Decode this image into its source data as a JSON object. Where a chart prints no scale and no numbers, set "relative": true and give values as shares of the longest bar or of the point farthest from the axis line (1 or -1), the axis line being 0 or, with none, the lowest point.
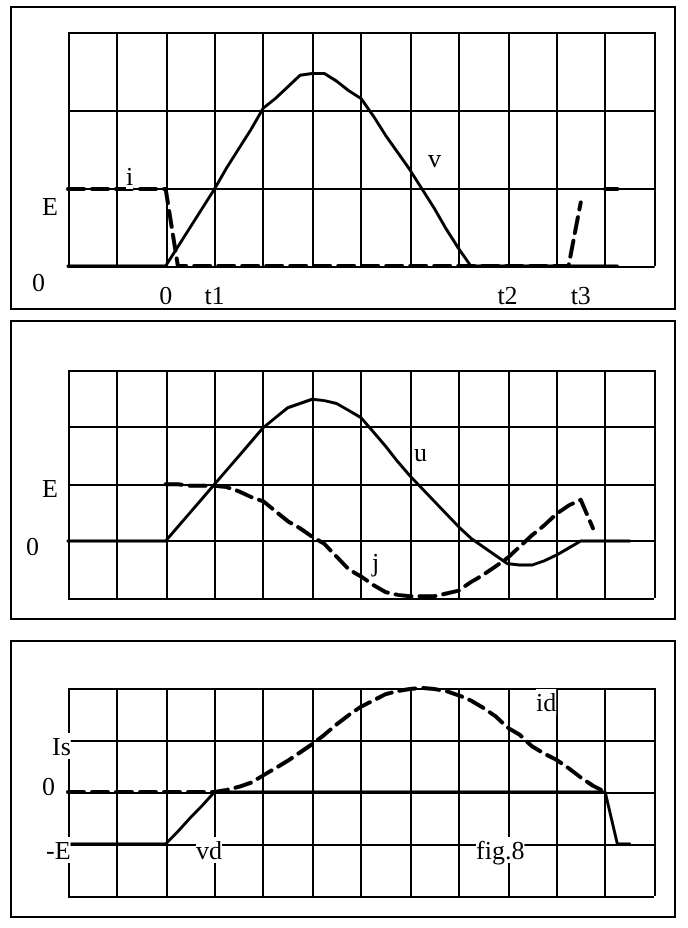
{
  "chart_data": [
    {
      "type": "line",
      "relative": true,
      "grid": true,
      "marker": "none",
      "categories": [
        null,
        null,
        null,
        null,
        null,
        null,
        null,
        null,
        "0",
        null,
        null,
        null,
        "t1",
        null,
        null,
        null,
        null,
        null,
        null,
        null,
        null,
        null,
        null,
        null,
        null,
        null,
        null,
        null,
        null,
        null,
        null,
        null,
        null,
        null,
        null,
        null,
        "t2",
        null,
        null,
        null,
        null,
        null,
        "t3",
        null,
        null,
        null,
        null,
        null,
        null
      ],
      "series": [
        {
          "color": "#000000",
          "line_style": "solid",
          "values": [
            0,
            0,
            0,
            0,
            0,
            0,
            0,
            0,
            0,
            0.1,
            0.2,
            0.3,
            0.4,
            0.51,
            0.61,
            0.71,
            0.82,
            0.87,
            0.93,
            0.99,
            1,
            1,
            0.96,
            0.91,
            0.87,
            0.78,
            0.68,
            0.59,
            0.5,
            0.4,
            0.3,
            0.19,
            0.09,
            0,
            0,
            0,
            0,
            0,
            0,
            0,
            0,
            0,
            0,
            0,
            0,
            0,
            null,
            null,
            null
          ]
        },
        {
          "color": "#000000",
          "line_style": "dashed",
          "values": [
            0.4,
            0.4,
            0.4,
            0.4,
            0.4,
            0.4,
            0.4,
            0.4,
            0.4,
            0,
            0,
            0,
            0,
            0,
            0,
            0,
            0,
            0,
            0,
            0,
            0,
            0,
            0,
            0,
            0,
            0,
            0,
            0,
            0,
            0,
            0,
            0,
            0,
            0,
            0,
            0,
            0,
            0,
            0,
            0,
            0,
            0,
            0.33,
            null,
            0.4,
            0.4,
            null,
            null,
            null
          ]
        }
      ],
      "annotations": [
        "E",
        "0",
        "i",
        "v"
      ]
    },
    {
      "type": "line",
      "relative": true,
      "grid": true,
      "marker": "none",
      "categories": [
        null,
        null,
        null,
        null,
        null,
        null,
        null,
        null,
        null,
        null,
        null,
        null,
        null,
        null,
        null,
        null,
        null,
        null,
        null,
        null,
        null,
        null,
        null,
        null,
        null,
        null,
        null,
        null,
        null,
        null,
        null,
        null,
        null,
        null,
        null,
        null,
        null,
        null,
        null,
        null,
        null,
        null,
        null,
        null,
        null,
        null,
        null,
        null,
        null
      ],
      "series": [
        {
          "color": "#000000",
          "line_style": "solid",
          "values": [
            0,
            0,
            0,
            0,
            0,
            0,
            0,
            0,
            0,
            0.1,
            0.2,
            0.3,
            0.4,
            0.5,
            0.6,
            0.7,
            0.8,
            0.87,
            0.94,
            0.97,
            1,
            0.99,
            0.97,
            0.92,
            0.87,
            0.77,
            0.67,
            0.56,
            0.46,
            0.37,
            0.28,
            0.19,
            0.1,
            0.02,
            -0.04,
            -0.1,
            -0.16,
            -0.17,
            -0.17,
            -0.14,
            -0.1,
            -0.05,
            0,
            0,
            0,
            0,
            0,
            null,
            null
          ]
        },
        {
          "color": "#000000",
          "line_style": "dashed",
          "values": [
            null,
            null,
            null,
            null,
            null,
            null,
            null,
            null,
            0.4,
            0.4,
            0.39,
            0.39,
            0.39,
            0.38,
            0.35,
            0.31,
            0.28,
            0.21,
            0.14,
            0.09,
            0.03,
            -0.02,
            -0.11,
            -0.2,
            -0.25,
            -0.31,
            -0.36,
            -0.38,
            -0.39,
            -0.39,
            -0.39,
            -0.37,
            -0.35,
            -0.29,
            -0.24,
            -0.18,
            -0.12,
            -0.04,
            0.04,
            0.11,
            0.19,
            0.25,
            0.29,
            0.09,
            null,
            null,
            null,
            null,
            null
          ]
        }
      ],
      "annotations": [
        "E",
        "0",
        "u",
        "j"
      ]
    },
    {
      "type": "line",
      "relative": true,
      "grid": true,
      "marker": "none",
      "categories": [
        null,
        null,
        null,
        null,
        null,
        null,
        null,
        null,
        null,
        null,
        null,
        null,
        null,
        null,
        null,
        null,
        null,
        null,
        null,
        null,
        null,
        null,
        null,
        null,
        null,
        null,
        null,
        null,
        null,
        null,
        null,
        null,
        null,
        null,
        null,
        null,
        null,
        null,
        null,
        null,
        null,
        null,
        null,
        null,
        null,
        null,
        null,
        null,
        null
      ],
      "series": [
        {
          "color": "#000000",
          "line_style": "solid",
          "values": [
            -0.5,
            -0.5,
            -0.5,
            -0.5,
            -0.5,
            -0.5,
            -0.5,
            -0.5,
            -0.5,
            -0.38,
            -0.25,
            -0.13,
            0,
            0,
            0,
            0,
            0,
            0,
            0,
            0,
            0,
            0,
            0,
            0,
            0,
            0,
            0,
            0,
            0,
            0,
            0,
            0,
            0,
            0,
            0,
            0,
            0,
            0,
            0,
            0,
            0,
            0,
            0,
            0,
            0,
            -0.5,
            -0.5,
            null,
            null
          ]
        },
        {
          "color": "#000000",
          "line_style": "dashed",
          "values": [
            0,
            0,
            0,
            0,
            0,
            0,
            0,
            0,
            0,
            0,
            0,
            0,
            0,
            0.02,
            0.05,
            0.09,
            0.16,
            0.23,
            0.3,
            0.38,
            0.46,
            0.55,
            0.65,
            0.74,
            0.82,
            0.88,
            0.94,
            0.97,
            0.99,
            1,
            0.99,
            0.97,
            0.93,
            0.88,
            0.81,
            0.73,
            0.62,
            0.55,
            0.44,
            0.37,
            0.31,
            0.23,
            0.14,
            0.06,
            0,
            null,
            null,
            null,
            null
          ]
        }
      ],
      "annotations": [
        "Is",
        "0",
        "-E",
        "vd",
        "id",
        "fig.8"
      ]
    }
  ]
}
